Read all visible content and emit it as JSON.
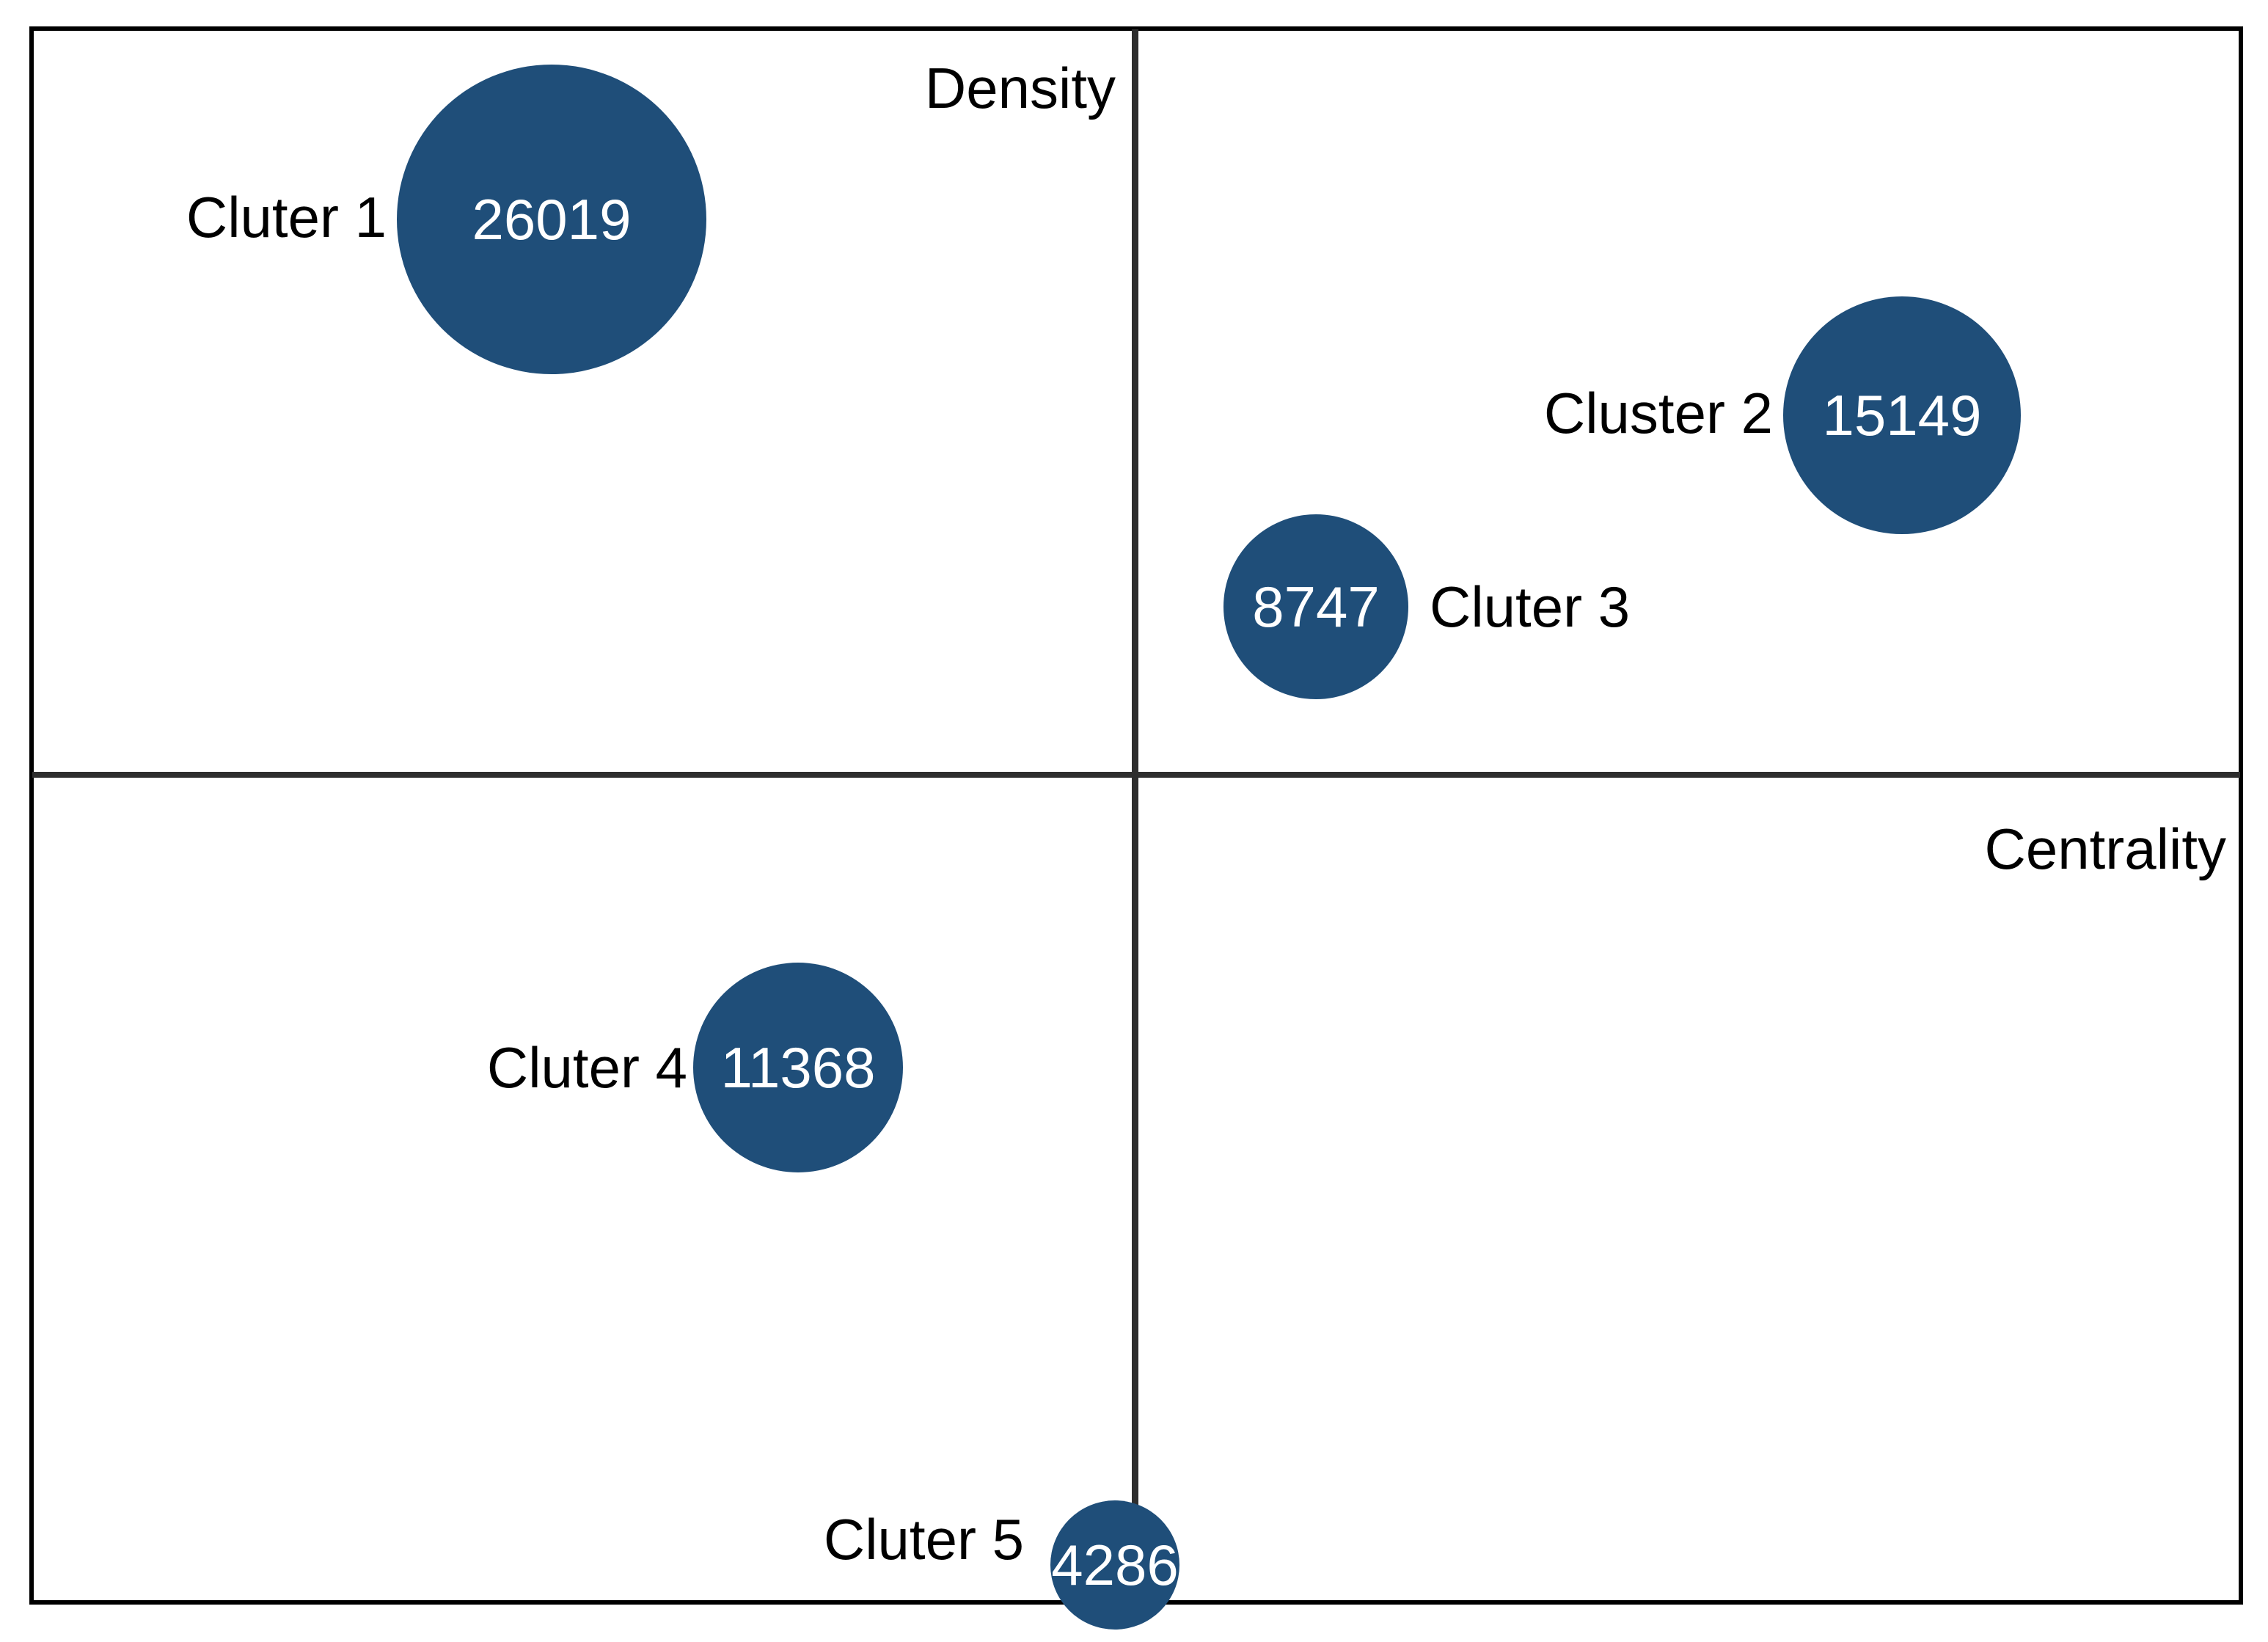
{
  "axes": {
    "vertical_axis_label": "Density",
    "horizontal_axis_label": "Centrality"
  },
  "clusters": [
    {
      "label": "Cluter 1",
      "value": "26019"
    },
    {
      "label": "Cluster 2",
      "value": "15149"
    },
    {
      "label": "Cluter 3",
      "value": "8747"
    },
    {
      "label": "Cluter 4",
      "value": "11368"
    },
    {
      "label": "Cluter 5",
      "value": "4286"
    }
  ],
  "chart_data": {
    "type": "scatter",
    "subtype": "quadrant-bubble-strategic-diagram",
    "title": "",
    "xlabel": "Centrality",
    "ylabel": "Density",
    "legend": "none",
    "grid": "off",
    "series": [
      {
        "name": "Cluter 1",
        "value": 26019,
        "quadrant": "top-left",
        "label_side": "left",
        "bubble_radius_px": 211
      },
      {
        "name": "Cluster 2",
        "value": 15149,
        "quadrant": "top-right",
        "label_side": "left",
        "bubble_radius_px": 162
      },
      {
        "name": "Cluter 3",
        "value": 8747,
        "quadrant": "top-right",
        "label_side": "right",
        "bubble_radius_px": 126
      },
      {
        "name": "Cluter 4",
        "value": 11368,
        "quadrant": "bottom-left",
        "label_side": "left",
        "bubble_radius_px": 143
      },
      {
        "name": "Cluter 5",
        "value": 4286,
        "quadrant": "bottom-on-vertical-axis",
        "label_side": "left",
        "bubble_radius_px": 88
      }
    ],
    "colors": {
      "bubble_fill": "#1F4E79",
      "bubble_value_text": "#FFFFFF",
      "label_text": "#000000",
      "axis_line": "#2E2E2E",
      "outer_border": "#000000",
      "background": "#FFFFFF"
    }
  }
}
